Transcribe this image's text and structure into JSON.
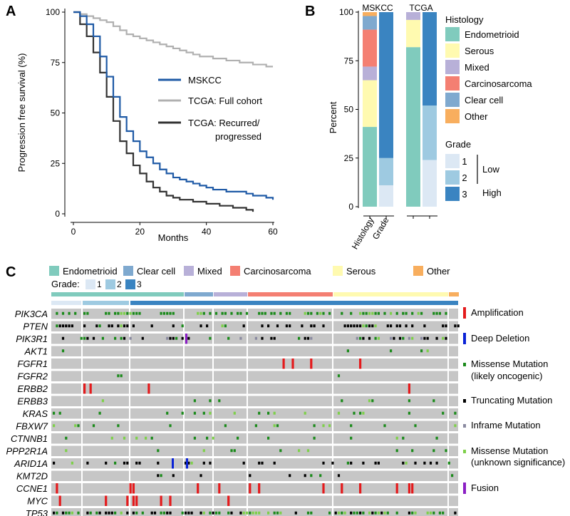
{
  "panel_labels": {
    "a": "A",
    "b": "B",
    "c": "C"
  },
  "colors": {
    "mskcc": "#1f5aa6",
    "tcga_full": "#b0b0b0",
    "tcga_rec": "#333333",
    "endometrioid": "#80cbbd",
    "serous": "#fffab0",
    "mixed": "#b8b0d8",
    "carcinosarcoma": "#f47f72",
    "clear_cell": "#7fa9cf",
    "other": "#f8ae5e",
    "grade1": "#dce8f4",
    "grade2": "#9ecae1",
    "grade3": "#3a84c1",
    "amplification": "#e41a1c",
    "deep_deletion": "#0a22d6",
    "missense_onco": "#1a8a1a",
    "truncating": "#000000",
    "inframe": "#8a8aa0",
    "missense_unknown": "#7ed04a",
    "fusion": "#8b1fc4",
    "background_cell": "#c6c6c6"
  },
  "chart_data": [
    {
      "type": "line",
      "panel": "A",
      "xlabel": "Months",
      "ylabel": "Progression free survival (%)",
      "xlim": [
        0,
        60
      ],
      "ylim": [
        0,
        100
      ],
      "xticks": [
        "0",
        "20",
        "40",
        "60"
      ],
      "yticks": [
        "0",
        "25",
        "50",
        "75",
        "100"
      ],
      "legend": {
        "position": "right",
        "entries": [
          "MSKCC",
          "TCGA: Full cohort",
          "TCGA: Recurred/",
          "progressed"
        ]
      },
      "series": [
        {
          "name": "MSKCC",
          "x": [
            0,
            2,
            4,
            6,
            8,
            10,
            12,
            14,
            16,
            18,
            20,
            22,
            24,
            26,
            28,
            30,
            32,
            34,
            36,
            38,
            40,
            42,
            44,
            46,
            48,
            50,
            52,
            54,
            56,
            58,
            60
          ],
          "y": [
            100,
            98,
            94,
            88,
            78,
            68,
            58,
            48,
            41,
            36,
            31,
            28,
            25,
            22,
            20,
            18,
            17,
            16,
            15,
            14,
            13,
            12,
            12,
            11,
            11,
            11,
            10,
            9,
            9,
            8,
            7
          ]
        },
        {
          "name": "TCGA: Full cohort",
          "x": [
            0,
            2,
            4,
            6,
            8,
            10,
            12,
            14,
            16,
            18,
            20,
            22,
            24,
            26,
            28,
            30,
            32,
            34,
            36,
            38,
            40,
            42,
            44,
            46,
            48,
            50,
            52,
            54,
            56,
            58,
            60
          ],
          "y": [
            100,
            99,
            98,
            97,
            96,
            95,
            93,
            91,
            89,
            88,
            87,
            86,
            85,
            84,
            83,
            82,
            81,
            80,
            79,
            78,
            78,
            77,
            77,
            76,
            76,
            75,
            75,
            74,
            74,
            73,
            73
          ]
        },
        {
          "name": "TCGA: Recurred/progressed",
          "x": [
            0,
            2,
            4,
            6,
            8,
            10,
            12,
            14,
            16,
            18,
            20,
            22,
            24,
            26,
            28,
            30,
            32,
            34,
            36,
            38,
            40,
            42,
            44,
            46,
            48,
            50,
            52,
            54
          ],
          "y": [
            100,
            94,
            88,
            80,
            70,
            58,
            46,
            36,
            30,
            24,
            20,
            16,
            13,
            11,
            9,
            8,
            7,
            7,
            6,
            6,
            5,
            5,
            4,
            4,
            3,
            3,
            2,
            1
          ]
        }
      ]
    },
    {
      "type": "bar",
      "panel": "B",
      "ylabel": "Percent",
      "ylim": [
        0,
        100
      ],
      "yticks": [
        "0",
        "25",
        "50",
        "75",
        "100"
      ],
      "groups": [
        "MSKCC",
        "TCGA"
      ],
      "categories": [
        "Histology",
        "Grade"
      ],
      "legend_histology_title": "Histology",
      "legend_histology": [
        "Endometrioid",
        "Serous",
        "Mixed",
        "Carcinosarcoma",
        "Clear cell",
        "Other"
      ],
      "legend_grade_title": "Grade",
      "legend_grade": [
        "1",
        "2",
        "3"
      ],
      "grade_low_label": "Low",
      "grade_high_label": "High",
      "stacks": [
        {
          "group": "MSKCC",
          "bar": "Histology",
          "segments": [
            [
              "endometrioid",
              41
            ],
            [
              "serous",
              24
            ],
            [
              "mixed",
              7
            ],
            [
              "carcinosarcoma",
              19
            ],
            [
              "clear_cell",
              7
            ],
            [
              "other",
              2
            ]
          ]
        },
        {
          "group": "MSKCC",
          "bar": "Grade",
          "segments": [
            [
              "grade1",
              11
            ],
            [
              "grade2",
              14
            ],
            [
              "grade3",
              75
            ]
          ]
        },
        {
          "group": "TCGA",
          "bar": "Histology",
          "segments": [
            [
              "endometrioid",
              82
            ],
            [
              "serous",
              14
            ],
            [
              "mixed",
              4
            ]
          ]
        },
        {
          "group": "TCGA",
          "bar": "Grade",
          "segments": [
            [
              "grade1",
              24
            ],
            [
              "grade2",
              28
            ],
            [
              "grade3",
              48
            ]
          ]
        }
      ]
    },
    {
      "type": "heatmap",
      "panel": "C",
      "top_legend": [
        "Endometrioid",
        "Clear cell",
        "Mixed",
        "Carcinosarcoma",
        "Serous",
        "Other"
      ],
      "grade_label": "Grade:",
      "grade_values": [
        "1",
        "2",
        "3"
      ],
      "genes": [
        "PIK3CA",
        "PTEN",
        "PIK3R1",
        "AKT1",
        "FGFR1",
        "FGFR2",
        "ERBB2",
        "ERBB3",
        "KRAS",
        "FBXW7",
        "CTNNB1",
        "PPP2R1A",
        "ARID1A",
        "KMT2D",
        "CCNE1",
        "MYC",
        "TP53"
      ],
      "histology_blocks": [
        [
          "endometrioid",
          72,
          259
        ],
        [
          "clear_cell",
          259,
          300
        ],
        [
          "mixed",
          300,
          348
        ],
        [
          "carcinosarcoma",
          348,
          468
        ],
        [
          "serous",
          468,
          630
        ],
        [
          "other",
          630,
          645
        ]
      ],
      "grade_blocks": [
        [
          "grade1",
          72,
          116
        ],
        [
          "grade2",
          116,
          183
        ],
        [
          "grade3",
          183,
          645
        ]
      ],
      "alteration_legend": [
        "Amplification",
        "Deep Deletion",
        "Missense Mutation",
        "(likely oncogenic)",
        "Truncating Mutation",
        "Inframe Mutation",
        "Missense Mutation",
        "(unknown significance)",
        "Fusion"
      ]
    }
  ]
}
